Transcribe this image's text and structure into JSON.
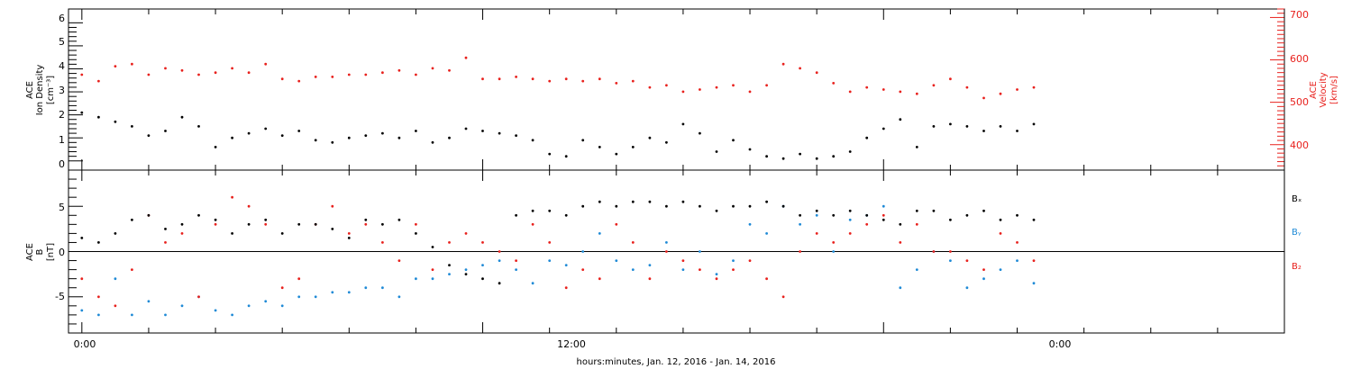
{
  "figure": {
    "xlabel": "hours:minutes, Jan. 12, 2016 - Jan. 14, 2016",
    "x_tick_labels": [
      "0:00",
      "12:00",
      "0:00"
    ]
  },
  "panels": {
    "top": {
      "ylabel_left": [
        "ACE",
        "Ion Density",
        "[cm⁻³]"
      ],
      "ylabel_right": [
        "ACE",
        "Velocity",
        "[km/s]"
      ],
      "left_tick_labels": [
        "0",
        "1",
        "2",
        "3",
        "4",
        "5",
        "6"
      ],
      "right_tick_labels": [
        "400",
        "500",
        "600",
        "700"
      ]
    },
    "bottom": {
      "ylabel_left": [
        "ACE",
        "B",
        "[nT]"
      ],
      "left_tick_labels": [
        "-5",
        "0",
        "5"
      ],
      "legend": [
        "Bₓ",
        "Bᵧ",
        "B₂"
      ]
    }
  },
  "colors": {
    "black": "#000000",
    "red": "#e8211d",
    "blue": "#1f8ad6",
    "frame": "#000000"
  },
  "chart_data": [
    {
      "type": "scatter",
      "title": "",
      "xlabel": "hours:minutes, Jan. 12, 2016 - Jan. 14, 2016",
      "x_unit": "hours since 0:00 Jan. 12, 2016",
      "xlim": [
        -0.4,
        36
      ],
      "y_axes": {
        "left": {
          "label": "ACE Ion Density [cm⁻³]",
          "lim": [
            -0.4,
            6.6
          ]
        },
        "right": {
          "label": "ACE Velocity [km/s]",
          "lim": [
            340,
            720
          ]
        }
      },
      "series": [
        {
          "name": "ACE Ion Density",
          "axis": "left",
          "color": "#000000",
          "x": [
            0,
            0.5,
            1,
            1.5,
            2,
            2.5,
            3,
            3.5,
            4,
            4.5,
            5,
            5.5,
            6,
            6.5,
            7,
            7.5,
            8,
            8.5,
            9,
            9.5,
            10,
            10.5,
            11,
            11.5,
            12,
            12.5,
            13,
            13.5,
            14,
            14.5,
            15,
            15.5,
            16,
            16.5,
            17,
            17.5,
            18,
            18.5,
            19,
            19.5,
            20,
            20.5,
            21,
            21.5,
            22,
            22.5,
            23,
            23.5,
            24,
            24.5,
            25,
            25.5,
            26,
            26.5,
            27,
            27.5,
            28,
            28.5
          ],
          "values": [
            2.1,
            1.9,
            1.7,
            1.5,
            1.1,
            1.3,
            1.9,
            1.5,
            0.6,
            1.0,
            1.2,
            1.4,
            1.1,
            1.3,
            0.9,
            0.8,
            1.0,
            1.1,
            1.2,
            1.0,
            1.3,
            0.8,
            1.0,
            1.4,
            1.3,
            1.2,
            1.1,
            0.9,
            0.3,
            0.2,
            0.9,
            0.6,
            0.3,
            0.6,
            1.0,
            0.8,
            1.6,
            1.2,
            0.4,
            0.9,
            0.5,
            0.2,
            0.1,
            0.3,
            0.1,
            0.2,
            0.4,
            1.0,
            1.4,
            1.8,
            0.6,
            1.5,
            1.6,
            1.5,
            1.3,
            1.5,
            1.3,
            1.6
          ]
        },
        {
          "name": "ACE Velocity",
          "axis": "right",
          "color": "#e8211d",
          "x": [
            0,
            0.5,
            1,
            1.5,
            2,
            2.5,
            3,
            3.5,
            4,
            4.5,
            5,
            5.5,
            6,
            6.5,
            7,
            7.5,
            8,
            8.5,
            9,
            9.5,
            10,
            10.5,
            11,
            11.5,
            12,
            12.5,
            13,
            13.5,
            14,
            14.5,
            15,
            15.5,
            16,
            16.5,
            17,
            17.5,
            18,
            18.5,
            19,
            19.5,
            20,
            20.5,
            21,
            21.5,
            22,
            22.5,
            23,
            23.5,
            24,
            24.5,
            25,
            25.5,
            26,
            26.5,
            27,
            27.5,
            28,
            28.5
          ],
          "values": [
            565,
            550,
            585,
            590,
            565,
            580,
            575,
            565,
            570,
            580,
            570,
            590,
            555,
            550,
            560,
            560,
            565,
            565,
            570,
            575,
            565,
            580,
            575,
            605,
            555,
            555,
            560,
            555,
            550,
            555,
            550,
            555,
            545,
            550,
            535,
            540,
            525,
            530,
            535,
            540,
            525,
            540,
            590,
            580,
            570,
            545,
            525,
            535,
            530,
            525,
            520,
            540,
            555,
            535,
            510,
            520,
            530,
            535
          ]
        }
      ]
    },
    {
      "type": "scatter",
      "title": "",
      "xlabel": "hours:minutes, Jan. 12, 2016 - Jan. 14, 2016",
      "x_unit": "hours since 0:00 Jan. 12, 2016",
      "xlim": [
        -0.4,
        36
      ],
      "ylabel": "ACE B [nT]",
      "ylim": [
        -9,
        9
      ],
      "reference_line": 0,
      "series": [
        {
          "name": "Bₓ",
          "color": "#000000",
          "x": [
            0,
            0.5,
            1,
            1.5,
            2,
            2.5,
            3,
            3.5,
            4,
            4.5,
            5,
            5.5,
            6,
            6.5,
            7,
            7.5,
            8,
            8.5,
            9,
            9.5,
            10,
            10.5,
            11,
            11.5,
            12,
            12.5,
            13,
            13.5,
            14,
            14.5,
            15,
            15.5,
            16,
            16.5,
            17,
            17.5,
            18,
            18.5,
            19,
            19.5,
            20,
            20.5,
            21,
            21.5,
            22,
            22.5,
            23,
            23.5,
            24,
            24.5,
            25,
            25.5,
            26,
            26.5,
            27,
            27.5,
            28,
            28.5
          ],
          "values": [
            1.5,
            1.0,
            2.0,
            3.5,
            4.0,
            2.5,
            3.0,
            4.0,
            3.5,
            2.0,
            3.0,
            3.5,
            2.0,
            3.0,
            3.0,
            2.5,
            1.5,
            3.5,
            3.0,
            3.5,
            2.0,
            0.5,
            -1.5,
            -2.5,
            -3.0,
            -3.5,
            4.0,
            4.5,
            4.5,
            4.0,
            5.0,
            5.5,
            5.0,
            5.5,
            5.5,
            5.0,
            5.5,
            5.0,
            4.5,
            5.0,
            5.0,
            5.5,
            5.0,
            4.0,
            4.5,
            4.0,
            4.5,
            4.0,
            3.5,
            3.0,
            4.5,
            4.5,
            3.5,
            4.0,
            4.5,
            3.5,
            4.0,
            3.5
          ]
        },
        {
          "name": "Bᵧ",
          "color": "#1f8ad6",
          "x": [
            0,
            0.5,
            1,
            1.5,
            2,
            2.5,
            3,
            3.5,
            4,
            4.5,
            5,
            5.5,
            6,
            6.5,
            7,
            7.5,
            8,
            8.5,
            9,
            9.5,
            10,
            10.5,
            11,
            11.5,
            12,
            12.5,
            13,
            13.5,
            14,
            14.5,
            15,
            15.5,
            16,
            16.5,
            17,
            17.5,
            18,
            18.5,
            19,
            19.5,
            20,
            20.5,
            21,
            21.5,
            22,
            22.5,
            23,
            23.5,
            24,
            24.5,
            25,
            25.5,
            26,
            26.5,
            27,
            27.5,
            28,
            28.5
          ],
          "values": [
            -6.5,
            -7.0,
            -3.0,
            -7.0,
            -5.5,
            -7.0,
            -6.0,
            -5.0,
            -6.5,
            -7.0,
            -6.0,
            -5.5,
            -6.0,
            -5.0,
            -5.0,
            -4.5,
            -4.5,
            -4.0,
            -4.0,
            -5.0,
            -3.0,
            -3.0,
            -2.5,
            -2.0,
            -1.5,
            -1.0,
            -2.0,
            -3.5,
            -1.0,
            -1.5,
            0.0,
            2.0,
            -1.0,
            -2.0,
            -1.5,
            1.0,
            -2.0,
            0.0,
            -2.5,
            -1.0,
            3.0,
            2.0,
            5.0,
            3.0,
            4.0,
            0.0,
            3.5,
            4.0,
            5.0,
            -4.0,
            -2.0,
            0.0,
            -1.0,
            -4.0,
            -3.0,
            -2.0,
            -1.0,
            -3.5
          ]
        },
        {
          "name": "B₂",
          "color": "#e8211d",
          "x": [
            0,
            0.5,
            1,
            1.5,
            2,
            2.5,
            3,
            3.5,
            4,
            4.5,
            5,
            5.5,
            6,
            6.5,
            7,
            7.5,
            8,
            8.5,
            9,
            9.5,
            10,
            10.5,
            11,
            11.5,
            12,
            12.5,
            13,
            13.5,
            14,
            14.5,
            15,
            15.5,
            16,
            16.5,
            17,
            17.5,
            18,
            18.5,
            19,
            19.5,
            20,
            20.5,
            21,
            21.5,
            22,
            22.5,
            23,
            23.5,
            24,
            24.5,
            25,
            25.5,
            26,
            26.5,
            27,
            27.5,
            28,
            28.5
          ],
          "values": [
            -3.0,
            -5.0,
            -6.0,
            -2.0,
            4.0,
            1.0,
            2.0,
            -5.0,
            3.0,
            6.0,
            5.0,
            3.0,
            -4.0,
            -3.0,
            3.0,
            5.0,
            2.0,
            3.0,
            1.0,
            -1.0,
            3.0,
            -2.0,
            1.0,
            2.0,
            1.0,
            0.0,
            -1.0,
            3.0,
            1.0,
            -4.0,
            -2.0,
            -3.0,
            3.0,
            1.0,
            -3.0,
            0.0,
            -1.0,
            -2.0,
            -3.0,
            -2.0,
            -1.0,
            -3.0,
            -5.0,
            0.0,
            2.0,
            1.0,
            2.0,
            3.0,
            4.0,
            1.0,
            3.0,
            0.0,
            0.0,
            -1.0,
            -2.0,
            2.0,
            1.0,
            -1.0
          ]
        }
      ]
    }
  ]
}
